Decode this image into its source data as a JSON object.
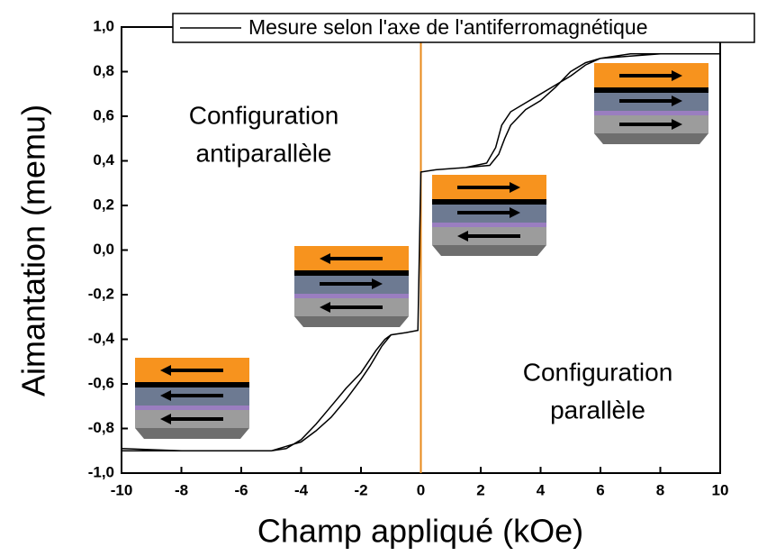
{
  "chart_data": {
    "type": "line",
    "x_label": "Champ appliqué (kOe)",
    "y_label": "Aimantation (memu)",
    "annotations": [
      [
        "Configuration",
        "antiparallèle"
      ],
      [
        "Configuration",
        "parallèle"
      ]
    ],
    "series": [
      {
        "name": "Mesure selon l'axe de l'antiferromagnétique",
        "color": "#000000",
        "x": [
          -10,
          -8,
          -6,
          -5,
          -4.5,
          -4,
          -3.5,
          -3,
          -2.5,
          -2,
          -1.5,
          -1.2,
          -1,
          -0.5,
          -0.1,
          0,
          0.5,
          1.5,
          2.3,
          2.6,
          2.8,
          3,
          3.5,
          4,
          4.5,
          5,
          5.5,
          6,
          7,
          8,
          10,
          10,
          8,
          7,
          6,
          5.5,
          5,
          4.5,
          4,
          3.5,
          3,
          2.7,
          2.5,
          2.2,
          1.5,
          0.5,
          0,
          -0.1,
          -0.5,
          -1,
          -1.3,
          -1.7,
          -2,
          -2.5,
          -3,
          -3.5,
          -4,
          -4.5,
          -5,
          -6,
          -8,
          -10
        ],
        "values": [
          -0.89,
          -0.9,
          -0.9,
          -0.9,
          -0.89,
          -0.85,
          -0.78,
          -0.7,
          -0.62,
          -0.55,
          -0.45,
          -0.4,
          -0.38,
          -0.37,
          -0.36,
          0.35,
          0.36,
          0.37,
          0.38,
          0.43,
          0.5,
          0.56,
          0.63,
          0.67,
          0.73,
          0.8,
          0.84,
          0.86,
          0.88,
          0.88,
          0.88,
          0.88,
          0.88,
          0.87,
          0.86,
          0.83,
          0.78,
          0.74,
          0.7,
          0.66,
          0.62,
          0.56,
          0.46,
          0.39,
          0.37,
          0.36,
          0.35,
          -0.36,
          -0.37,
          -0.38,
          -0.43,
          -0.52,
          -0.58,
          -0.67,
          -0.75,
          -0.81,
          -0.86,
          -0.88,
          -0.9,
          -0.9,
          -0.9,
          -0.9
        ]
      }
    ],
    "vline": {
      "x": 0,
      "color": "#e8891a"
    },
    "xlim": [
      -10,
      10
    ],
    "xticks": [
      -10,
      -8,
      -6,
      -4,
      -2,
      0,
      2,
      4,
      6,
      8,
      10
    ],
    "ylim": [
      -1,
      1
    ],
    "yticks": [
      {
        "value": -1,
        "label": "-1,0"
      },
      {
        "value": -0.8,
        "label": "-0,8"
      },
      {
        "value": -0.6,
        "label": "-0,6"
      },
      {
        "value": -0.4,
        "label": "-0,4"
      },
      {
        "value": -0.2,
        "label": "-0,2"
      },
      {
        "value": 0,
        "label": "0,0"
      },
      {
        "value": 0.2,
        "label": "0,2"
      },
      {
        "value": 0.4,
        "label": "0,4"
      },
      {
        "value": 0.6,
        "label": "0,6"
      },
      {
        "value": 0.8,
        "label": "0,8"
      },
      {
        "value": 1,
        "label": "1,0"
      }
    ],
    "legend": "top-right"
  }
}
